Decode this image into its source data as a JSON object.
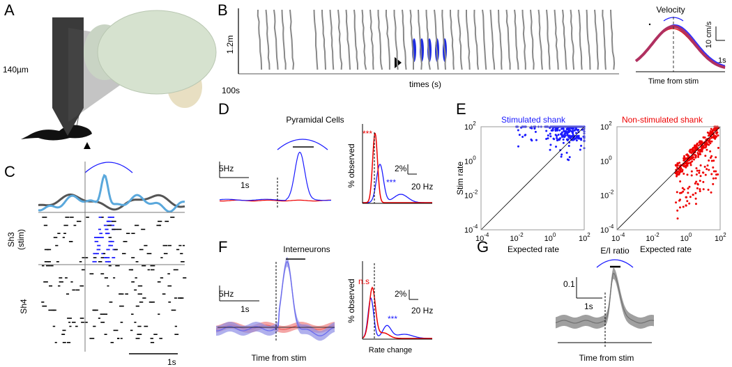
{
  "panels": {
    "A": {
      "letter": "A",
      "probe_label": "140µm"
    },
    "B": {
      "letter": "B",
      "distance_scale": "1.2m",
      "time_scale": "100s",
      "x_label": "times (s)",
      "inset": {
        "title": "Velocity",
        "speed_scale": "10 cm/s",
        "time_scale": "1s",
        "x_label": "Time from stim"
      }
    },
    "C": {
      "letter": "C",
      "shank_stim": [
        "Sh3",
        "(stim)"
      ],
      "shank_other": "Sh4",
      "time_scale": "1s"
    },
    "D": {
      "letter": "D",
      "title": "Pyramidal Cells",
      "rate_scale": "5Hz",
      "time_scale": "1s",
      "hist_y_label": "% observed",
      "sig_red": "***",
      "sig_blue": "***",
      "pct_scale": "2%",
      "hz_scale": "20 Hz"
    },
    "E": {
      "letter": "E",
      "left_title": "Stimulated shank",
      "right_title": "Non-stimulated shank",
      "y_label": "Stim rate",
      "x_label": "Expected rate",
      "ticks": [
        {
          "base": "10",
          "exp": "-4"
        },
        {
          "base": "10",
          "exp": "-2"
        },
        {
          "base": "10",
          "exp": "0"
        },
        {
          "base": "10",
          "exp": "2"
        }
      ]
    },
    "F": {
      "letter": "F",
      "title": "Interneurons",
      "rate_scale": "5Hz",
      "time_scale": "1s",
      "x_label": "Time from stim",
      "hist_y_label": "% observed",
      "sig_red": "n.s",
      "sig_blue": "***",
      "pct_scale": "2%",
      "hz_scale": "20 Hz",
      "hist_x_label": "Rate change"
    },
    "G": {
      "letter": "G",
      "title": "E/I ratio",
      "ratio_scale": "0.1",
      "time_scale": "1s",
      "x_label": "Time from stim"
    }
  }
}
